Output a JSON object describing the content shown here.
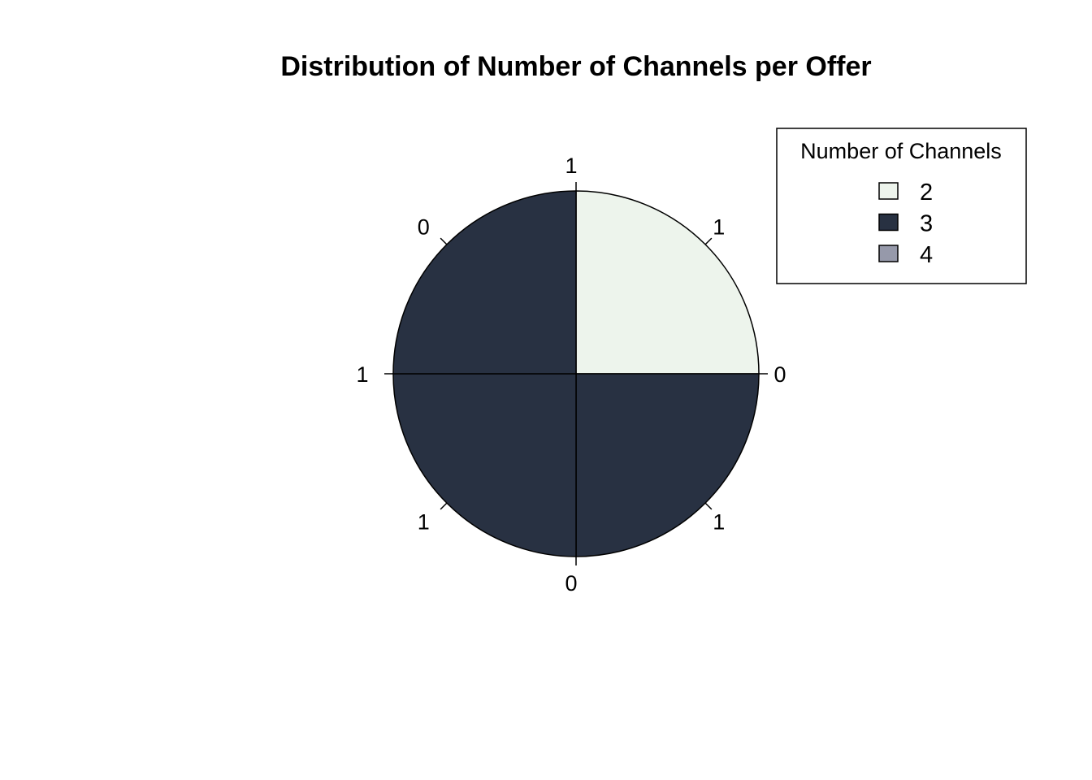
{
  "chart_data": {
    "type": "pie",
    "title": "Distribution of Number of Channels per Offer",
    "slices": [
      {
        "category": "2",
        "value": 1
      },
      {
        "category": "3",
        "value": 3
      },
      {
        "category": "4",
        "value": 0
      }
    ],
    "tick_labels": [
      "0",
      "1",
      "1",
      "0",
      "1",
      "1",
      "0",
      "1"
    ],
    "legend": {
      "title": "Number of Channels",
      "position": "top-right",
      "entries": [
        {
          "label": "2",
          "color": "#EDF4EC"
        },
        {
          "label": "3",
          "color": "#283142"
        },
        {
          "label": "4",
          "color": "#9699AA"
        }
      ]
    }
  }
}
